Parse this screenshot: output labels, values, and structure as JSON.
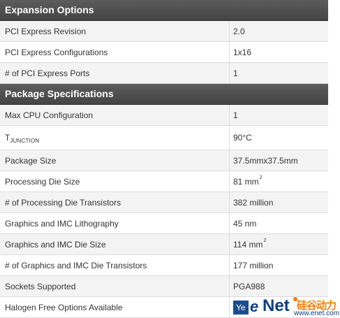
{
  "sections": [
    {
      "title": "Expansion Options",
      "rows": [
        {
          "label": "PCI Express Revision",
          "value": "2.0"
        },
        {
          "label": "PCI Express Configurations",
          "value": "1x16"
        },
        {
          "label": "# of PCI Express Ports",
          "value": "1"
        }
      ]
    },
    {
      "title": "Package Specifications",
      "rows": [
        {
          "label": "Max CPU Configuration",
          "value": "1"
        },
        {
          "label_main": "T",
          "label_sub": "JUNCTION",
          "value": "90°C"
        },
        {
          "label": "Package Size",
          "value": "37.5mmx37.5mm"
        },
        {
          "label": "Processing Die Size",
          "value_main": "81 mm",
          "value_sup": "2"
        },
        {
          "label": "# of Processing Die Transistors",
          "value": "382 million"
        },
        {
          "label": "Graphics and IMC Lithography",
          "value": "45 nm"
        },
        {
          "label": "Graphics and IMC Die Size",
          "value_main": "114 mm",
          "value_sup": "2"
        },
        {
          "label": "# of Graphics and IMC Die Transistors",
          "value": "177 million"
        },
        {
          "label": "Sockets Supported",
          "value": "PGA988"
        },
        {
          "label": "Halogen Free Options Available",
          "value": "Ye"
        }
      ]
    }
  ],
  "watermark": {
    "e": "e",
    "net": "Net",
    "logo_cn": "硅谷动力",
    "site": "www.enet.com.cn"
  },
  "colors": {
    "header_bg": "#4d4d4d",
    "row_bg": "#f3f3f3",
    "row_alt_bg": "#ffffff",
    "watermark_blue": "#0a3e86",
    "watermark_orange": "#ff7a00"
  }
}
